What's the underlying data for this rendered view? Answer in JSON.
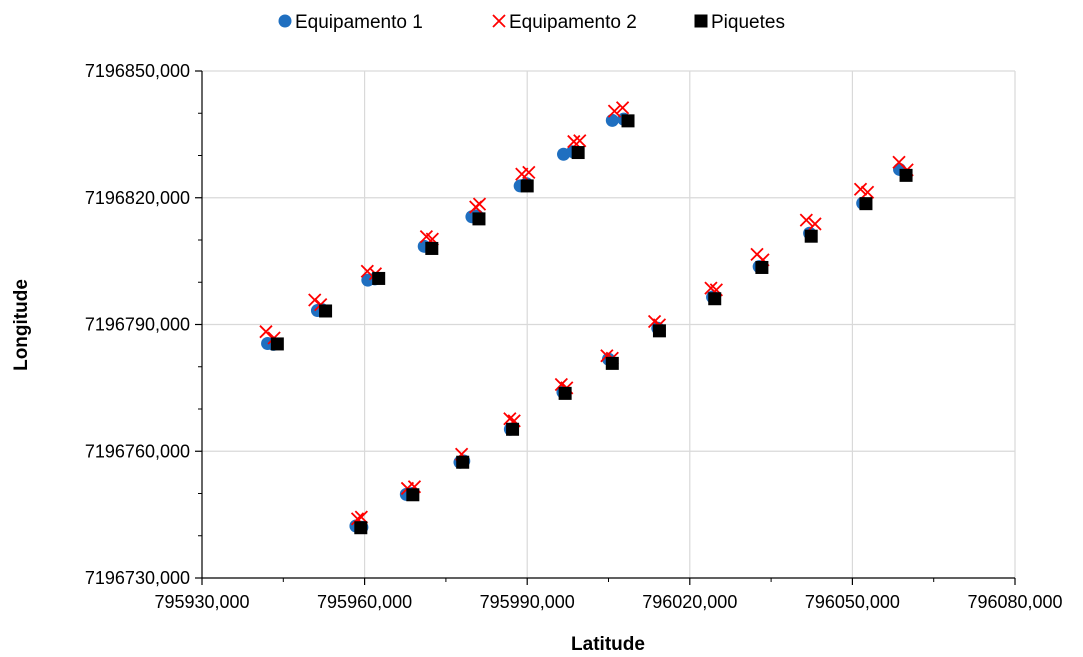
{
  "chart_data": {
    "type": "scatter",
    "title": "",
    "xlabel": "Latitude",
    "ylabel": "Longitude",
    "xlim": [
      795930,
      796080
    ],
    "ylim": [
      7196730,
      7196850
    ],
    "x_ticks": [
      795930,
      795960,
      795990,
      796020,
      796050,
      796080
    ],
    "y_ticks": [
      7196730,
      7196760,
      7196790,
      7196820,
      7196850
    ],
    "x_tick_labels": [
      "795930,000",
      "795960,000",
      "795990,000",
      "796020,000",
      "796050,000",
      "796080,000"
    ],
    "y_tick_labels": [
      "7196730,000",
      "7196760,000",
      "7196790,000",
      "7196820,000",
      "7196850,000"
    ],
    "grid": true,
    "legend_position": "top",
    "series": [
      {
        "name": "Equipamento 1",
        "marker": "circle",
        "color": "#1f6fc0",
        "points": [
          [
            795942.1,
            7196785.5
          ],
          [
            795943.2,
            7196785.3
          ],
          [
            795951.3,
            7196793.3
          ],
          [
            795952.2,
            7196793.5
          ],
          [
            795960.6,
            7196800.5
          ],
          [
            795961.9,
            7196800.8
          ],
          [
            795971.0,
            7196808.5
          ],
          [
            795972.2,
            7196808.2
          ],
          [
            795979.8,
            7196815.5
          ],
          [
            795980.8,
            7196815.7
          ],
          [
            795988.7,
            7196822.8
          ],
          [
            795989.9,
            7196823.3
          ],
          [
            795996.7,
            7196830.3
          ],
          [
            795998.4,
            7196830.9
          ],
          [
            796005.7,
            7196838.3
          ],
          [
            796007.8,
            7196838.6
          ],
          [
            795958.4,
            7196742.3
          ],
          [
            795959.5,
            7196742.0
          ],
          [
            795967.7,
            7196749.8
          ],
          [
            795968.8,
            7196750.0
          ],
          [
            795977.6,
            7196757.4
          ],
          [
            795978.3,
            7196757.7
          ],
          [
            795986.9,
            7196765.2
          ],
          [
            795996.6,
            7196774.0
          ],
          [
            796005.0,
            7196781.8
          ],
          [
            796014.1,
            7196789.1
          ],
          [
            796024.2,
            7196796.5
          ],
          [
            796032.8,
            7196803.7
          ],
          [
            796042.1,
            7196811.6
          ],
          [
            796051.9,
            7196818.7
          ],
          [
            796058.7,
            7196826.7
          ]
        ]
      },
      {
        "name": "Equipamento 2",
        "marker": "x",
        "color": "#ff0000",
        "points": [
          [
            795941.8,
            7196788.3
          ],
          [
            795943.3,
            7196786.8
          ],
          [
            795950.8,
            7196795.8
          ],
          [
            795951.9,
            7196794.7
          ],
          [
            795960.5,
            7196802.6
          ],
          [
            795962.0,
            7196802.0
          ],
          [
            795971.4,
            7196810.8
          ],
          [
            795972.5,
            7196810.2
          ],
          [
            795980.5,
            7196817.8
          ],
          [
            795981.2,
            7196818.5
          ],
          [
            795989.0,
            7196825.6
          ],
          [
            795990.3,
            7196826.0
          ],
          [
            795998.6,
            7196833.3
          ],
          [
            795999.7,
            7196833.5
          ],
          [
            796006.1,
            7196840.5
          ],
          [
            796007.6,
            7196841.3
          ],
          [
            795958.7,
            7196744.0
          ],
          [
            795959.4,
            7196744.4
          ],
          [
            795967.9,
            7196751.2
          ],
          [
            795969.2,
            7196751.6
          ],
          [
            795977.9,
            7196759.3
          ],
          [
            795986.8,
            7196767.7
          ],
          [
            795987.6,
            7196767.2
          ],
          [
            795996.3,
            7196775.8
          ],
          [
            795997.3,
            7196775.0
          ],
          [
            796004.7,
            7196782.6
          ],
          [
            796005.7,
            7196782.0
          ],
          [
            796013.5,
            7196790.7
          ],
          [
            796014.4,
            7196789.9
          ],
          [
            796023.9,
            7196798.6
          ],
          [
            796024.9,
            7196798.2
          ],
          [
            796032.4,
            7196806.6
          ],
          [
            796033.5,
            7196805.3
          ],
          [
            796041.5,
            7196814.7
          ],
          [
            796043.1,
            7196813.8
          ],
          [
            796051.5,
            7196822.0
          ],
          [
            796052.8,
            7196821.3
          ],
          [
            796058.6,
            7196828.4
          ],
          [
            796060.1,
            7196826.6
          ]
        ]
      },
      {
        "name": "Piquetes",
        "marker": "square",
        "color": "#000000",
        "points": [
          [
            795943.9,
            7196785.4
          ],
          [
            795952.8,
            7196793.2
          ],
          [
            795962.6,
            7196800.9
          ],
          [
            795972.4,
            7196808.0
          ],
          [
            795981.1,
            7196815.0
          ],
          [
            795990.0,
            7196822.8
          ],
          [
            795999.4,
            7196830.7
          ],
          [
            796008.6,
            7196838.2
          ],
          [
            795959.3,
            7196741.9
          ],
          [
            795968.9,
            7196749.7
          ],
          [
            795978.1,
            7196757.4
          ],
          [
            795987.3,
            7196765.2
          ],
          [
            795997.0,
            7196773.7
          ],
          [
            796005.7,
            7196780.8
          ],
          [
            796014.4,
            7196788.5
          ],
          [
            796024.6,
            7196796.1
          ],
          [
            796033.3,
            7196803.5
          ],
          [
            796042.4,
            7196810.9
          ],
          [
            796052.5,
            7196818.6
          ],
          [
            796059.9,
            7196825.3
          ]
        ]
      }
    ]
  }
}
